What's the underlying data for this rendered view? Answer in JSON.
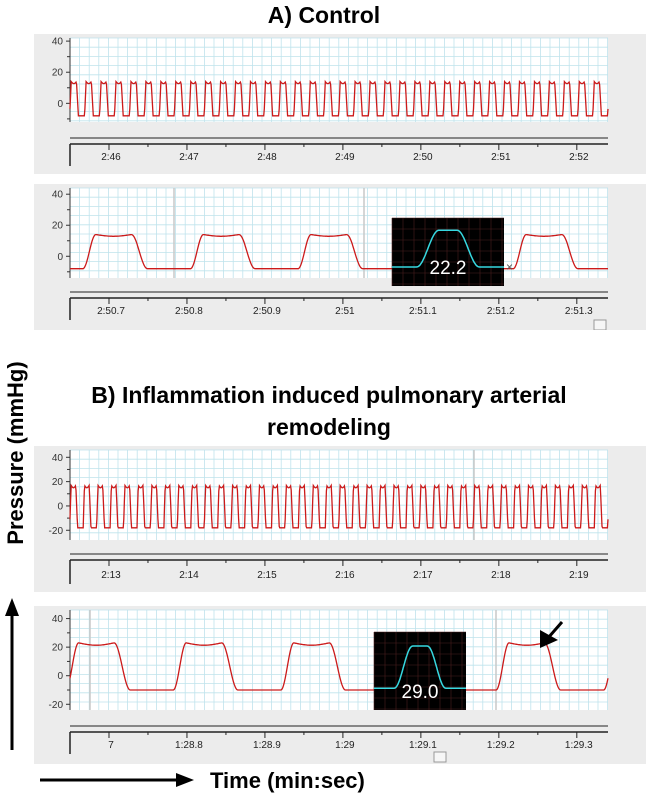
{
  "titles": {
    "a": "A) Control",
    "b_line1": "B) Inflammation induced pulmonary arterial",
    "b_line2": "remodeling"
  },
  "axis_labels": {
    "y": "Pressure (mmHg)",
    "x": "Time (min:sec)"
  },
  "colors": {
    "trace": "#cc1a1a",
    "inset_trace": "#36d8e0",
    "grid": "#bfe3ec",
    "panel_bg": "#ececec"
  },
  "chart_data": [
    {
      "id": "a_overview",
      "type": "line",
      "yticks": [
        "40",
        "20",
        "0"
      ],
      "ylim": [
        -12,
        42
      ],
      "xticks": [
        "2:46",
        "2:47",
        "2:48",
        "2:49",
        "2:50",
        "2:51",
        "2:52"
      ],
      "waveform": {
        "cycles": 36,
        "min": -8,
        "max": 14
      }
    },
    {
      "id": "a_zoom",
      "type": "line",
      "yticks": [
        "40",
        "20",
        "0"
      ],
      "ylim": [
        -14,
        44
      ],
      "xticks": [
        "2:50.7",
        "2:50.8",
        "2:50.9",
        "2:51",
        "2:51.1",
        "2:51.2",
        "2:51.3"
      ],
      "waveform": {
        "cycles": 5,
        "min": -8,
        "max": 14
      },
      "inset": {
        "label": "22.2",
        "peak": 22.2
      }
    },
    {
      "id": "b_overview",
      "type": "line",
      "yticks": [
        "40",
        "20",
        "0",
        "-20"
      ],
      "ylim": [
        -28,
        46
      ],
      "xticks": [
        "2:13",
        "2:14",
        "2:15",
        "2:16",
        "2:17",
        "2:18",
        "2:19"
      ],
      "waveform": {
        "cycles": 40,
        "min": -18,
        "max": 17
      }
    },
    {
      "id": "b_zoom",
      "type": "line",
      "yticks": [
        "40",
        "20",
        "0",
        "-20"
      ],
      "ylim": [
        -24,
        46
      ],
      "xticks": [
        "7",
        "1:28.8",
        "1:28.9",
        "1:29",
        "1:29.1",
        "1:29.2",
        "1:29.3"
      ],
      "waveform": {
        "cycles": 5,
        "min": -10,
        "max": 23
      },
      "inset": {
        "label": "29.0",
        "peak": 29.0
      },
      "annotation": "arrow marking notch"
    }
  ]
}
